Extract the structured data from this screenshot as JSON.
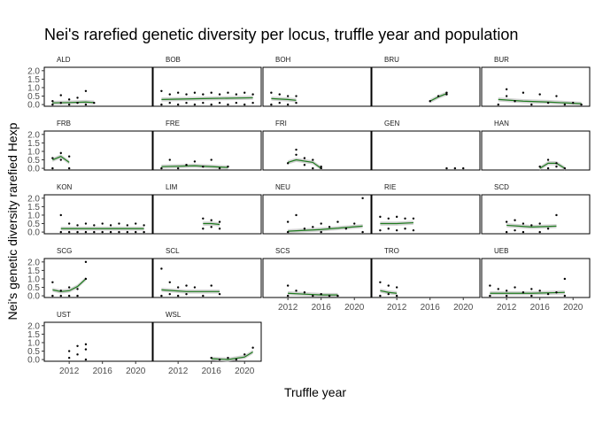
{
  "chart_data": {
    "type": "faceted-scatter-smooth",
    "title": "Nei's rarefied genetic diversity per locus, truffle year and population",
    "xlabel": "Truffle year",
    "ylabel": "Nei's genetic diversity rarefied Hexp",
    "xlim": [
      2009,
      2022
    ],
    "ylim": [
      -0.1,
      2.2
    ],
    "x_ticks": [
      2012,
      2016,
      2020
    ],
    "y_ticks": [
      0.0,
      0.5,
      1.0,
      1.5,
      2.0
    ],
    "grid": false,
    "colors": {
      "points": "#000000",
      "smooth_line": "#1e7b1e",
      "ribbon": "#c8c8c8",
      "panel_border": "#000000"
    },
    "panels": [
      {
        "name": "ALD",
        "smooth": [
          [
            2010,
            0.1
          ],
          [
            2012,
            0.12
          ],
          [
            2014,
            0.15
          ],
          [
            2015,
            0.12
          ]
        ],
        "points": [
          [
            2010,
            0.0
          ],
          [
            2010,
            0.2
          ],
          [
            2011,
            0.1
          ],
          [
            2011,
            0.55
          ],
          [
            2012,
            0.0
          ],
          [
            2012,
            0.3
          ],
          [
            2013,
            0.1
          ],
          [
            2013,
            0.4
          ],
          [
            2014,
            0.0
          ],
          [
            2014,
            0.8
          ],
          [
            2015,
            0.1
          ]
        ]
      },
      {
        "name": "BOB",
        "smooth": [
          [
            2010,
            0.3
          ],
          [
            2015,
            0.35
          ],
          [
            2021,
            0.4
          ]
        ],
        "points": [
          [
            2010,
            0.0
          ],
          [
            2010,
            0.8
          ],
          [
            2011,
            0.1
          ],
          [
            2011,
            0.6
          ],
          [
            2012,
            0.0
          ],
          [
            2012,
            0.7
          ],
          [
            2013,
            0.1
          ],
          [
            2013,
            0.6
          ],
          [
            2014,
            0.0
          ],
          [
            2014,
            0.7
          ],
          [
            2015,
            0.1
          ],
          [
            2015,
            0.6
          ],
          [
            2016,
            0.0
          ],
          [
            2016,
            0.7
          ],
          [
            2017,
            0.1
          ],
          [
            2017,
            0.6
          ],
          [
            2018,
            0.0
          ],
          [
            2018,
            0.7
          ],
          [
            2019,
            0.1
          ],
          [
            2019,
            0.6
          ],
          [
            2020,
            0.0
          ],
          [
            2020,
            0.7
          ],
          [
            2021,
            0.1
          ],
          [
            2021,
            0.6
          ]
        ]
      },
      {
        "name": "BOH",
        "smooth": [
          [
            2010,
            0.35
          ],
          [
            2012,
            0.3
          ],
          [
            2013,
            0.25
          ]
        ],
        "points": [
          [
            2010,
            0.0
          ],
          [
            2010,
            0.7
          ],
          [
            2011,
            0.1
          ],
          [
            2011,
            0.6
          ],
          [
            2012,
            0.0
          ],
          [
            2012,
            0.5
          ],
          [
            2013,
            0.1
          ],
          [
            2013,
            0.5
          ]
        ]
      },
      {
        "name": "BRU",
        "smooth": [
          [
            2016,
            0.2
          ],
          [
            2017,
            0.45
          ],
          [
            2018,
            0.65
          ]
        ],
        "points": [
          [
            2016,
            0.2
          ],
          [
            2017,
            0.5
          ],
          [
            2018,
            0.6
          ],
          [
            2018,
            0.7
          ]
        ]
      },
      {
        "name": "BUR",
        "smooth": [
          [
            2011,
            0.3
          ],
          [
            2014,
            0.2
          ],
          [
            2017,
            0.15
          ],
          [
            2021,
            0.05
          ]
        ],
        "points": [
          [
            2011,
            0.0
          ],
          [
            2012,
            0.5
          ],
          [
            2012,
            0.9
          ],
          [
            2013,
            0.2
          ],
          [
            2014,
            0.7
          ],
          [
            2015,
            0.0
          ],
          [
            2016,
            0.6
          ],
          [
            2017,
            0.1
          ],
          [
            2018,
            0.5
          ],
          [
            2019,
            0.0
          ],
          [
            2020,
            0.1
          ],
          [
            2021,
            0.0
          ]
        ]
      },
      {
        "name": "FRB",
        "smooth": [
          [
            2010,
            0.5
          ],
          [
            2011,
            0.7
          ],
          [
            2012,
            0.35
          ]
        ],
        "points": [
          [
            2010,
            0.0
          ],
          [
            2010,
            0.6
          ],
          [
            2011,
            0.9
          ],
          [
            2011,
            0.5
          ],
          [
            2012,
            0.0
          ],
          [
            2012,
            0.7
          ]
        ]
      },
      {
        "name": "FRE",
        "smooth": [
          [
            2010,
            0.1
          ],
          [
            2014,
            0.15
          ],
          [
            2018,
            0.05
          ]
        ],
        "points": [
          [
            2010,
            0.0
          ],
          [
            2011,
            0.5
          ],
          [
            2012,
            0.0
          ],
          [
            2013,
            0.2
          ],
          [
            2014,
            0.4
          ],
          [
            2015,
            0.1
          ],
          [
            2016,
            0.5
          ],
          [
            2017,
            0.0
          ],
          [
            2018,
            0.1
          ]
        ]
      },
      {
        "name": "FRI",
        "smooth": [
          [
            2012,
            0.35
          ],
          [
            2013,
            0.5
          ],
          [
            2015,
            0.35
          ],
          [
            2016,
            0.0
          ]
        ],
        "points": [
          [
            2012,
            0.3
          ],
          [
            2013,
            0.8
          ],
          [
            2013,
            1.1
          ],
          [
            2014,
            0.6
          ],
          [
            2014,
            0.2
          ],
          [
            2015,
            0.5
          ],
          [
            2015,
            0.0
          ],
          [
            2016,
            0.1
          ],
          [
            2016,
            0.0
          ]
        ]
      },
      {
        "name": "GEN",
        "smooth": [],
        "points": [
          [
            2018,
            0.0
          ],
          [
            2019,
            0.0
          ],
          [
            2020,
            0.0
          ]
        ]
      },
      {
        "name": "HAN",
        "smooth": [
          [
            2016,
            0.0
          ],
          [
            2017,
            0.3
          ],
          [
            2018,
            0.3
          ],
          [
            2019,
            0.0
          ]
        ],
        "points": [
          [
            2016,
            0.1
          ],
          [
            2017,
            0.5
          ],
          [
            2017,
            0.0
          ],
          [
            2018,
            0.3
          ],
          [
            2018,
            0.1
          ],
          [
            2019,
            0.0
          ]
        ]
      },
      {
        "name": "KON",
        "smooth": [
          [
            2011,
            0.2
          ],
          [
            2016,
            0.2
          ],
          [
            2021,
            0.2
          ]
        ],
        "points": [
          [
            2011,
            1.0
          ],
          [
            2011,
            0.0
          ],
          [
            2012,
            0.5
          ],
          [
            2012,
            0.0
          ],
          [
            2013,
            0.4
          ],
          [
            2013,
            0.0
          ],
          [
            2014,
            0.5
          ],
          [
            2014,
            0.0
          ],
          [
            2015,
            0.4
          ],
          [
            2015,
            0.0
          ],
          [
            2016,
            0.5
          ],
          [
            2016,
            0.0
          ],
          [
            2017,
            0.4
          ],
          [
            2017,
            0.0
          ],
          [
            2018,
            0.5
          ],
          [
            2018,
            0.0
          ],
          [
            2019,
            0.4
          ],
          [
            2019,
            0.0
          ],
          [
            2020,
            0.5
          ],
          [
            2020,
            0.0
          ],
          [
            2021,
            0.4
          ],
          [
            2021,
            0.0
          ]
        ]
      },
      {
        "name": "LIM",
        "smooth": [
          [
            2015,
            0.5
          ],
          [
            2016,
            0.5
          ],
          [
            2017,
            0.45
          ]
        ],
        "points": [
          [
            2015,
            0.8
          ],
          [
            2015,
            0.2
          ],
          [
            2016,
            0.7
          ],
          [
            2016,
            0.3
          ],
          [
            2017,
            0.6
          ],
          [
            2017,
            0.2
          ]
        ]
      },
      {
        "name": "NEU",
        "smooth": [
          [
            2012,
            0.05
          ],
          [
            2016,
            0.15
          ],
          [
            2021,
            0.35
          ]
        ],
        "points": [
          [
            2012,
            0.6
          ],
          [
            2012,
            0.0
          ],
          [
            2013,
            1.0
          ],
          [
            2014,
            0.2
          ],
          [
            2015,
            0.3
          ],
          [
            2016,
            0.5
          ],
          [
            2016,
            0.0
          ],
          [
            2017,
            0.3
          ],
          [
            2018,
            0.6
          ],
          [
            2019,
            0.2
          ],
          [
            2020,
            0.5
          ],
          [
            2021,
            0.0
          ],
          [
            2021,
            2.0
          ]
        ]
      },
      {
        "name": "RIE",
        "smooth": [
          [
            2010,
            0.5
          ],
          [
            2012,
            0.5
          ],
          [
            2014,
            0.55
          ]
        ],
        "points": [
          [
            2010,
            0.9
          ],
          [
            2010,
            0.1
          ],
          [
            2011,
            0.8
          ],
          [
            2011,
            0.2
          ],
          [
            2012,
            0.9
          ],
          [
            2012,
            0.1
          ],
          [
            2013,
            0.8
          ],
          [
            2013,
            0.2
          ],
          [
            2014,
            0.8
          ],
          [
            2014,
            0.1
          ]
        ]
      },
      {
        "name": "SCD",
        "smooth": [
          [
            2012,
            0.4
          ],
          [
            2015,
            0.3
          ],
          [
            2018,
            0.35
          ]
        ],
        "points": [
          [
            2012,
            0.6
          ],
          [
            2012,
            0.0
          ],
          [
            2013,
            0.7
          ],
          [
            2013,
            0.1
          ],
          [
            2014,
            0.5
          ],
          [
            2014,
            0.0
          ],
          [
            2015,
            0.4
          ],
          [
            2016,
            0.5
          ],
          [
            2016,
            0.0
          ],
          [
            2017,
            0.2
          ],
          [
            2018,
            1.0
          ]
        ]
      },
      {
        "name": "SCG",
        "smooth": [
          [
            2010,
            0.35
          ],
          [
            2011,
            0.25
          ],
          [
            2012,
            0.3
          ],
          [
            2013,
            0.55
          ],
          [
            2014,
            1.0
          ]
        ],
        "points": [
          [
            2010,
            0.0
          ],
          [
            2010,
            0.8
          ],
          [
            2011,
            0.3
          ],
          [
            2011,
            0.0
          ],
          [
            2012,
            0.5
          ],
          [
            2012,
            0.0
          ],
          [
            2013,
            0.4
          ],
          [
            2013,
            0.0
          ],
          [
            2014,
            1.0
          ],
          [
            2014,
            2.0
          ]
        ]
      },
      {
        "name": "SCL",
        "smooth": [
          [
            2010,
            0.35
          ],
          [
            2013,
            0.25
          ],
          [
            2017,
            0.25
          ]
        ],
        "points": [
          [
            2010,
            1.6
          ],
          [
            2010,
            0.0
          ],
          [
            2011,
            0.8
          ],
          [
            2011,
            0.1
          ],
          [
            2012,
            0.5
          ],
          [
            2012,
            0.0
          ],
          [
            2013,
            0.6
          ],
          [
            2013,
            0.1
          ],
          [
            2014,
            0.5
          ],
          [
            2015,
            0.0
          ],
          [
            2016,
            0.6
          ],
          [
            2017,
            0.1
          ]
        ]
      },
      {
        "name": "SCS",
        "smooth": [
          [
            2012,
            0.15
          ],
          [
            2014,
            0.1
          ],
          [
            2016,
            0.05
          ],
          [
            2018,
            0.05
          ]
        ],
        "points": [
          [
            2012,
            0.6
          ],
          [
            2012,
            0.0
          ],
          [
            2013,
            0.3
          ],
          [
            2014,
            0.2
          ],
          [
            2015,
            0.0
          ],
          [
            2016,
            0.1
          ],
          [
            2017,
            0.0
          ],
          [
            2018,
            0.0
          ]
        ]
      },
      {
        "name": "TRO",
        "smooth": [
          [
            2010,
            0.3
          ],
          [
            2011,
            0.2
          ],
          [
            2012,
            0.15
          ]
        ],
        "points": [
          [
            2010,
            0.8
          ],
          [
            2010,
            0.0
          ],
          [
            2011,
            0.6
          ],
          [
            2011,
            0.1
          ],
          [
            2012,
            0.5
          ],
          [
            2012,
            0.0
          ]
        ]
      },
      {
        "name": "UEB",
        "smooth": [
          [
            2010,
            0.15
          ],
          [
            2015,
            0.15
          ],
          [
            2019,
            0.2
          ]
        ],
        "points": [
          [
            2010,
            0.6
          ],
          [
            2010,
            0.0
          ],
          [
            2011,
            0.4
          ],
          [
            2012,
            0.3
          ],
          [
            2012,
            0.0
          ],
          [
            2013,
            0.5
          ],
          [
            2014,
            0.2
          ],
          [
            2015,
            0.4
          ],
          [
            2015,
            0.0
          ],
          [
            2016,
            0.3
          ],
          [
            2017,
            0.1
          ],
          [
            2018,
            0.2
          ],
          [
            2019,
            1.0
          ],
          [
            2019,
            0.0
          ]
        ]
      },
      {
        "name": "UST",
        "smooth": [],
        "points": [
          [
            2012,
            0.1
          ],
          [
            2012,
            0.5
          ],
          [
            2013,
            0.3
          ],
          [
            2013,
            0.8
          ],
          [
            2014,
            0.0
          ],
          [
            2014,
            0.6
          ],
          [
            2014,
            0.9
          ]
        ]
      },
      {
        "name": "WSL",
        "smooth": [
          [
            2016,
            0.05
          ],
          [
            2018,
            0.0
          ],
          [
            2020,
            0.15
          ],
          [
            2021,
            0.45
          ]
        ],
        "points": [
          [
            2016,
            0.1
          ],
          [
            2017,
            0.0
          ],
          [
            2018,
            0.1
          ],
          [
            2019,
            0.0
          ],
          [
            2020,
            0.3
          ],
          [
            2021,
            0.7
          ]
        ]
      }
    ]
  }
}
